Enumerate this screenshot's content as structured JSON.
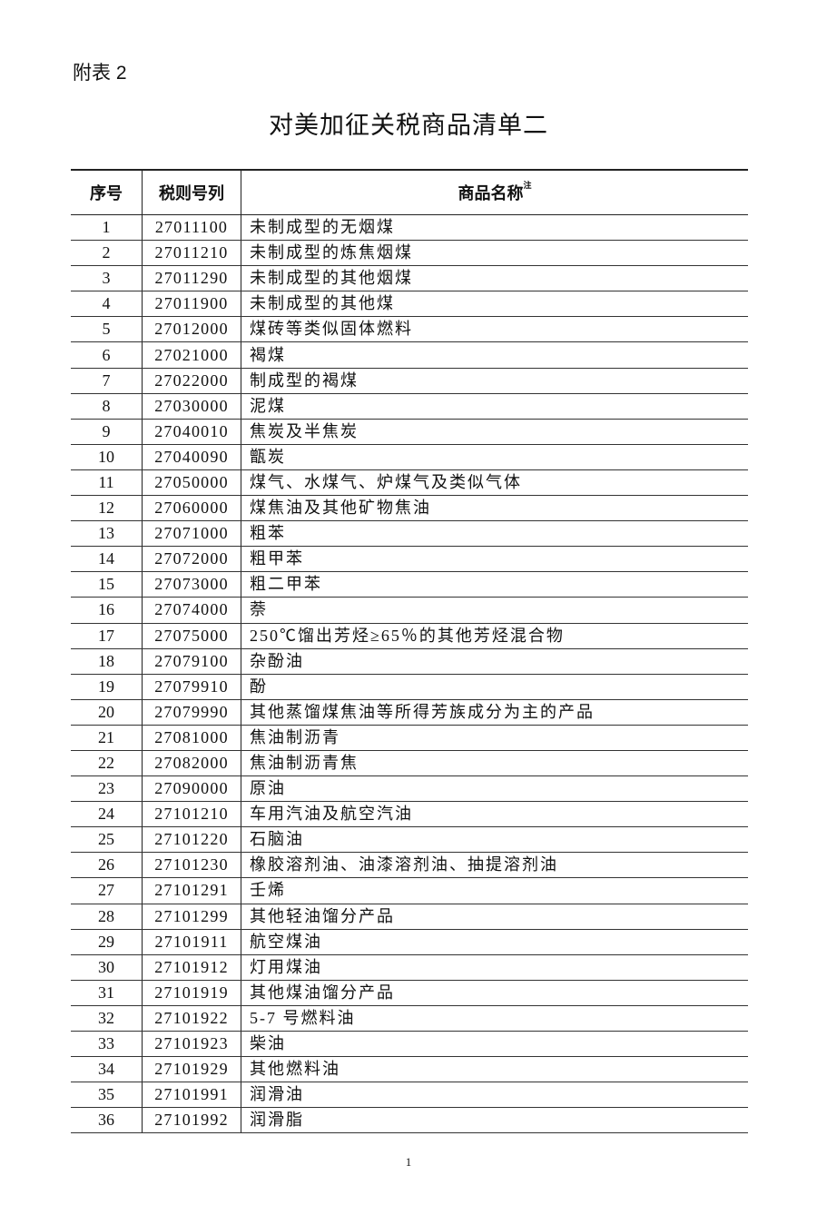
{
  "appendix_label": "附表 2",
  "title": "对美加征关税商品清单二",
  "table": {
    "headers": {
      "index": "序号",
      "code": "税则号列",
      "name": "商品名称",
      "name_note": "注"
    },
    "rows": [
      {
        "index": "1",
        "code": "27011100",
        "name": "未制成型的无烟煤"
      },
      {
        "index": "2",
        "code": "27011210",
        "name": "未制成型的炼焦烟煤"
      },
      {
        "index": "3",
        "code": "27011290",
        "name": "未制成型的其他烟煤"
      },
      {
        "index": "4",
        "code": "27011900",
        "name": "未制成型的其他煤"
      },
      {
        "index": "5",
        "code": "27012000",
        "name": "煤砖等类似固体燃料"
      },
      {
        "index": "6",
        "code": "27021000",
        "name": "褐煤"
      },
      {
        "index": "7",
        "code": "27022000",
        "name": "制成型的褐煤"
      },
      {
        "index": "8",
        "code": "27030000",
        "name": "泥煤"
      },
      {
        "index": "9",
        "code": "27040010",
        "name": "焦炭及半焦炭"
      },
      {
        "index": "10",
        "code": "27040090",
        "name": "甑炭"
      },
      {
        "index": "11",
        "code": "27050000",
        "name": "煤气、水煤气、炉煤气及类似气体"
      },
      {
        "index": "12",
        "code": "27060000",
        "name": "煤焦油及其他矿物焦油"
      },
      {
        "index": "13",
        "code": "27071000",
        "name": "粗苯"
      },
      {
        "index": "14",
        "code": "27072000",
        "name": "粗甲苯"
      },
      {
        "index": "15",
        "code": "27073000",
        "name": "粗二甲苯"
      },
      {
        "index": "16",
        "code": "27074000",
        "name": "萘"
      },
      {
        "index": "17",
        "code": "27075000",
        "name": "250℃馏出芳烃≥65％的其他芳烃混合物"
      },
      {
        "index": "18",
        "code": "27079100",
        "name": "杂酚油"
      },
      {
        "index": "19",
        "code": "27079910",
        "name": "酚"
      },
      {
        "index": "20",
        "code": "27079990",
        "name": "其他蒸馏煤焦油等所得芳族成分为主的产品"
      },
      {
        "index": "21",
        "code": "27081000",
        "name": "焦油制沥青"
      },
      {
        "index": "22",
        "code": "27082000",
        "name": "焦油制沥青焦"
      },
      {
        "index": "23",
        "code": "27090000",
        "name": "原油"
      },
      {
        "index": "24",
        "code": "27101210",
        "name": "车用汽油及航空汽油"
      },
      {
        "index": "25",
        "code": "27101220",
        "name": "石脑油"
      },
      {
        "index": "26",
        "code": "27101230",
        "name": "橡胶溶剂油、油漆溶剂油、抽提溶剂油"
      },
      {
        "index": "27",
        "code": "27101291",
        "name": "壬烯"
      },
      {
        "index": "28",
        "code": "27101299",
        "name": "其他轻油馏分产品"
      },
      {
        "index": "29",
        "code": "27101911",
        "name": "航空煤油"
      },
      {
        "index": "30",
        "code": "27101912",
        "name": "灯用煤油"
      },
      {
        "index": "31",
        "code": "27101919",
        "name": "其他煤油馏分产品"
      },
      {
        "index": "32",
        "code": "27101922",
        "name": "5-7 号燃料油"
      },
      {
        "index": "33",
        "code": "27101923",
        "name": "柴油"
      },
      {
        "index": "34",
        "code": "27101929",
        "name": "其他燃料油"
      },
      {
        "index": "35",
        "code": "27101991",
        "name": "润滑油"
      },
      {
        "index": "36",
        "code": "27101992",
        "name": "润滑脂"
      }
    ]
  },
  "page_number": "1"
}
